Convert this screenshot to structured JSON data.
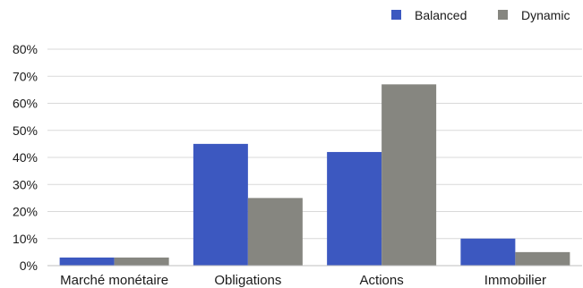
{
  "chart_data": {
    "type": "bar",
    "categories": [
      "Marché monétaire",
      "Obligations",
      "Actions",
      "Immobilier"
    ],
    "series": [
      {
        "name": "Balanced",
        "values": [
          3,
          45,
          42,
          10
        ],
        "color": "#3c58c0"
      },
      {
        "name": "Dynamic",
        "values": [
          3,
          25,
          67,
          5
        ],
        "color": "#868680"
      }
    ],
    "ylim": [
      0,
      80
    ],
    "yticks": [
      0,
      10,
      20,
      30,
      40,
      50,
      60,
      70,
      80
    ],
    "ytick_labels": [
      "0%",
      "10%",
      "20%",
      "30%",
      "40%",
      "50%",
      "60%",
      "70%",
      "80%"
    ],
    "grid": true,
    "legend_position": "top-right",
    "title": "",
    "xlabel": "",
    "ylabel": ""
  }
}
